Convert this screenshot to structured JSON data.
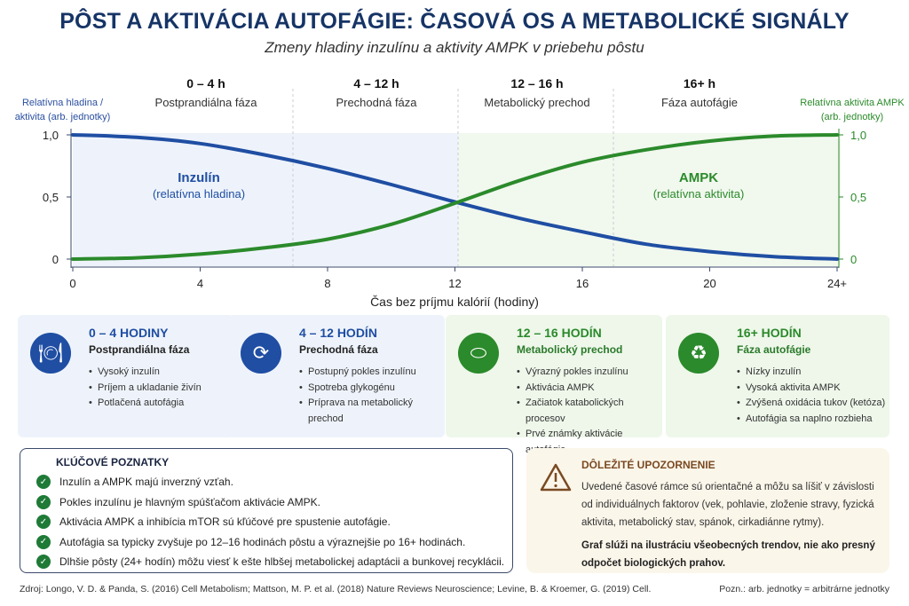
{
  "title": "PÔST A AKTIVÁCIA AUTOFÁGIE: ČASOVÁ OS A METABOLICKÉ SIGNÁLY",
  "subtitle": "Zmeny hladiny inzulínu a aktivity AMPK v priebehu pôstu",
  "phases": [
    {
      "range": "0 – 4 h",
      "name": "Postprandiálna fáza"
    },
    {
      "range": "4 – 12 h",
      "name": "Prechodná fáza"
    },
    {
      "range": "12 – 16 h",
      "name": "Metabolický prechod"
    },
    {
      "range": "16+ h",
      "name": "Fáza autofágie"
    }
  ],
  "chart_data": {
    "type": "line",
    "xlabel": "Čas bez príjmu kalórií (hodiny)",
    "ylabel_left": "Relatívna hladina / aktivita (arb. jednotky)",
    "ylabel_right": "Relatívna aktivita AMPK (arb. jednotky)",
    "x_ticks": [
      "0",
      "4",
      "8",
      "12",
      "16",
      "20",
      "24+"
    ],
    "y_ticks": [
      "0",
      "0,5",
      "1,0"
    ],
    "xlim": [
      0,
      24
    ],
    "ylim": [
      0,
      1
    ],
    "x": [
      0,
      2,
      4,
      6,
      8,
      10,
      12,
      14,
      16,
      18,
      20,
      22,
      24
    ],
    "series": [
      {
        "name": "Inzulín",
        "sublabel": "(relatívna hladina)",
        "color": "#1f4ea3",
        "values": [
          1.0,
          0.98,
          0.93,
          0.84,
          0.73,
          0.6,
          0.46,
          0.33,
          0.22,
          0.12,
          0.06,
          0.02,
          0.0
        ]
      },
      {
        "name": "AMPK",
        "sublabel": "(relatívna aktivita)",
        "color": "#2b8a2b",
        "values": [
          0.0,
          0.01,
          0.04,
          0.09,
          0.16,
          0.28,
          0.45,
          0.63,
          0.78,
          0.88,
          0.95,
          0.99,
          1.0
        ]
      }
    ],
    "grid": false
  },
  "cards": [
    {
      "title": "0 – 4 HODINY",
      "subtitle": "Postprandiálna fáza",
      "icon": "plate-cutlery-icon",
      "items": [
        "Vysoký inzulín",
        "Príjem a ukladanie živín",
        "Potlačená autofágia"
      ]
    },
    {
      "title": "4 – 12 HODÍN",
      "subtitle": "Prechodná fáza",
      "icon": "cycle-arrows-icon",
      "items": [
        "Postupný pokles inzulínu",
        "Spotreba glykogénu",
        "Príprava na metabolický prechod"
      ]
    },
    {
      "title": "12 – 16 HODÍN",
      "subtitle": "Metabolický prechod",
      "icon": "mitochondria-icon",
      "items": [
        "Výrazný pokles inzulínu",
        "Aktivácia AMPK",
        "Začiatok katabolických procesov",
        "Prvé známky aktivácie autofágie"
      ]
    },
    {
      "title": "16+ HODÍN",
      "subtitle": "Fáza autofágie",
      "icon": "recycle-icon",
      "items": [
        "Nízky inzulín",
        "Vysoká aktivita AMPK",
        "Zvýšená oxidácia tukov (ketóza)",
        "Autofágia sa naplno rozbieha"
      ]
    }
  ],
  "key_findings": {
    "title": "KĽÚČOVÉ POZNATKY",
    "items": [
      "Inzulín a AMPK majú inverzný vzťah.",
      "Pokles inzulínu je hlavným spúšťačom aktivácie AMPK.",
      "Aktivácia AMPK a inhibícia mTOR sú kľúčové pre spustenie autofágie.",
      "Autofágia sa typicky zvyšuje po 12–16 hodinách pôstu a výraznejšie po 16+ hodinách.",
      "Dlhšie pôsty (24+ hodín) môžu viesť k ešte hlbšej metabolickej adaptácii a bunkovej recyklácii."
    ]
  },
  "warning": {
    "title": "DÔLEŽITÉ UPOZORNENIE",
    "text": "Uvedené časové rámce sú orientačné a môžu sa líšiť v závislosti od individuálnych faktorov (vek, pohlavie, zloženie stravy, fyzická aktivita, metabolický stav, spánok, cirkadiánne rytmy).",
    "bold": "Graf slúži na ilustráciu všeobecných trendov, nie ako presný odpočet biologických prahov."
  },
  "footer": {
    "source": "Zdroj: Longo, V. D. & Panda, S. (2016) Cell Metabolism; Mattson, M. P. et al. (2018) Nature Reviews Neuroscience; Levine, B. & Kroemer, G. (2019) Cell.",
    "note": "Pozn.: arb. jednotky = arbitrárne jednotky"
  }
}
